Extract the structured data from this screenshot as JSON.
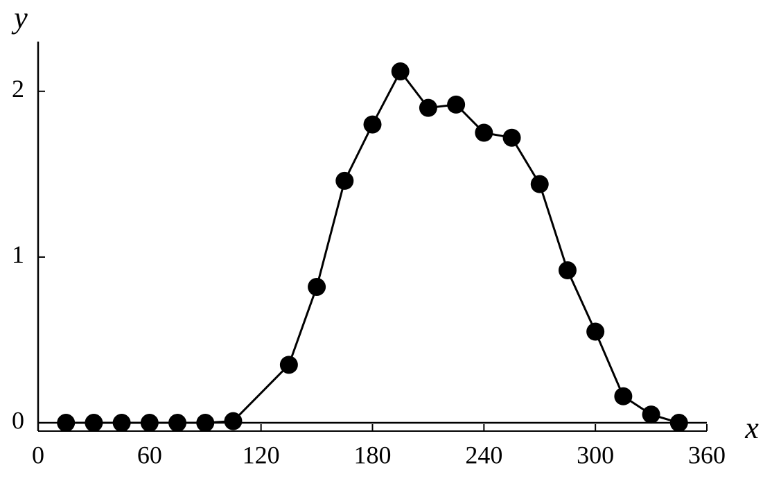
{
  "chart_data": {
    "type": "line",
    "x_label": "x",
    "y_label": "y",
    "x": [
      15,
      30,
      45,
      60,
      75,
      90,
      105,
      135,
      150,
      165,
      180,
      195,
      210,
      225,
      240,
      255,
      270,
      285,
      300,
      315,
      330,
      345
    ],
    "values": [
      0,
      0,
      0,
      0,
      0,
      0,
      0.01,
      0.35,
      0.82,
      1.46,
      1.8,
      2.12,
      1.9,
      1.92,
      1.75,
      1.72,
      1.44,
      0.92,
      0.55,
      0.16,
      0.05,
      0
    ],
    "color": "#000000",
    "xlim": [
      0,
      360
    ],
    "xticks": [
      0,
      60,
      120,
      180,
      240,
      300,
      360
    ],
    "ylim": [
      -0.05,
      2.3
    ],
    "yticks": [
      0,
      1,
      2
    ]
  }
}
